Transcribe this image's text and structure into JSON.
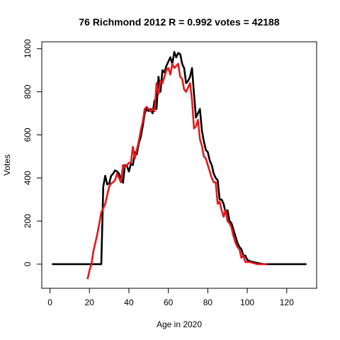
{
  "chart_data": {
    "type": "line",
    "title": "76 Richmond 2012 R = 0.992 votes = 42188",
    "xlabel": "Age in 2020",
    "ylabel": "Votes",
    "xlim": [
      -4.16,
      135.16
    ],
    "ylim": [
      -112,
      1032
    ],
    "xticks": [
      0,
      20,
      40,
      60,
      80,
      100,
      120
    ],
    "yticks": [
      0,
      200,
      400,
      600,
      800,
      1000
    ],
    "series": [
      {
        "color": "#000000",
        "x": [
          1,
          2,
          3,
          4,
          5,
          6,
          7,
          8,
          9,
          10,
          11,
          12,
          13,
          14,
          15,
          16,
          17,
          18,
          19,
          20,
          21,
          22,
          23,
          24,
          25,
          26,
          27,
          28,
          29,
          30,
          31,
          32,
          33,
          34,
          35,
          36,
          37,
          38,
          39,
          40,
          41,
          42,
          43,
          44,
          45,
          46,
          47,
          48,
          49,
          50,
          51,
          52,
          53,
          54,
          55,
          56,
          57,
          58,
          59,
          60,
          61,
          62,
          63,
          64,
          65,
          66,
          67,
          68,
          69,
          70,
          71,
          72,
          73,
          74,
          75,
          76,
          77,
          78,
          79,
          80,
          81,
          82,
          83,
          84,
          85,
          86,
          87,
          88,
          89,
          90,
          91,
          92,
          93,
          94,
          95,
          96,
          97,
          98,
          99,
          100,
          101,
          102,
          103,
          104,
          105,
          106,
          107,
          108,
          109,
          110,
          111,
          112,
          113,
          114,
          115,
          116,
          117,
          118,
          119,
          120,
          121,
          122,
          123,
          124,
          125,
          126,
          127,
          128,
          129,
          130
        ],
        "values": [
          0,
          0,
          0,
          0,
          0,
          0,
          0,
          0,
          0,
          0,
          0,
          0,
          0,
          0,
          0,
          0,
          0,
          0,
          0,
          0,
          0,
          0,
          0,
          0,
          0,
          0,
          360,
          410,
          370,
          375,
          410,
          420,
          435,
          430,
          420,
          395,
          378,
          460,
          455,
          430,
          465,
          460,
          520,
          510,
          560,
          590,
          640,
          700,
          720,
          710,
          720,
          700,
          760,
          720,
          870,
          800,
          900,
          890,
          920,
          940,
          960,
          930,
          985,
          960,
          980,
          975,
          930,
          910,
          840,
          850,
          870,
          910,
          790,
          680,
          700,
          720,
          620,
          570,
          530,
          520,
          480,
          460,
          420,
          400,
          390,
          300,
          300,
          280,
          240,
          250,
          200,
          190,
          160,
          130,
          100,
          80,
          70,
          40,
          40,
          20,
          15,
          12,
          10,
          8,
          6,
          4,
          2,
          1,
          0,
          0,
          0,
          0,
          0,
          0,
          0,
          0,
          0,
          0,
          0,
          0,
          0,
          0,
          0,
          0,
          0,
          0,
          0,
          0,
          0,
          0
        ]
      },
      {
        "color": "#e8161b",
        "x": [
          19,
          20,
          21,
          22,
          23,
          24,
          25,
          26,
          27,
          28,
          29,
          30,
          31,
          32,
          33,
          34,
          35,
          36,
          37,
          38,
          39,
          40,
          41,
          42,
          43,
          44,
          45,
          46,
          47,
          48,
          49,
          50,
          51,
          52,
          53,
          54,
          55,
          56,
          57,
          58,
          59,
          60,
          61,
          62,
          63,
          64,
          65,
          66,
          67,
          68,
          69,
          70,
          71,
          72,
          73,
          74,
          75,
          76,
          77,
          78,
          79,
          80,
          81,
          82,
          83,
          84,
          85,
          86,
          87,
          88,
          89,
          90,
          91,
          92,
          93,
          94,
          95,
          96,
          97,
          98,
          99,
          100,
          101,
          102,
          103,
          104,
          105,
          106,
          107,
          108,
          109,
          110
        ],
        "values": [
          -70,
          -30,
          0,
          60,
          100,
          140,
          190,
          240,
          260,
          280,
          320,
          360,
          375,
          380,
          390,
          420,
          400,
          380,
          460,
          450,
          460,
          470,
          470,
          545,
          490,
          530,
          570,
          620,
          660,
          720,
          730,
          720,
          710,
          720,
          710,
          840,
          790,
          850,
          840,
          870,
          900,
          910,
          880,
          930,
          910,
          920,
          930,
          870,
          860,
          810,
          800,
          820,
          840,
          760,
          630,
          640,
          670,
          580,
          550,
          500,
          490,
          460,
          430,
          400,
          380,
          380,
          280,
          290,
          250,
          220,
          250,
          200,
          190,
          170,
          130,
          100,
          80,
          70,
          30,
          40,
          10,
          10,
          10,
          8,
          5,
          3,
          0,
          0,
          0,
          0,
          0,
          0
        ]
      }
    ]
  }
}
